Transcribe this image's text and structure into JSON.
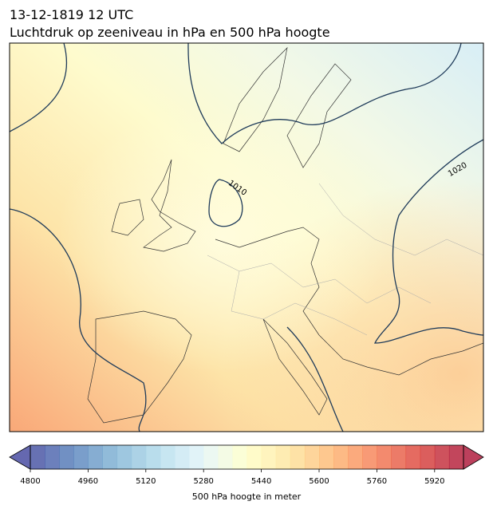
{
  "title": "13-12-1819 12 UTC",
  "subtitle": "Luchtdruk op zeeniveau in hPa en 500 hPa hoogte",
  "map": {
    "isobar_labels": [
      "1010",
      "1020"
    ]
  },
  "colorbar": {
    "label": "500 hPa hoogte in meter",
    "lim": [
      4800,
      6000
    ],
    "step": 40,
    "ticks": [
      4800,
      4960,
      5120,
      5280,
      5440,
      5600,
      5760,
      5920
    ],
    "colors": [
      "#313695",
      "#4575b4",
      "#74add1",
      "#abd9e9",
      "#e0f3f8",
      "#ffffbf",
      "#fee090",
      "#fdae61",
      "#f46d43",
      "#d73027",
      "#a50026"
    ]
  }
}
